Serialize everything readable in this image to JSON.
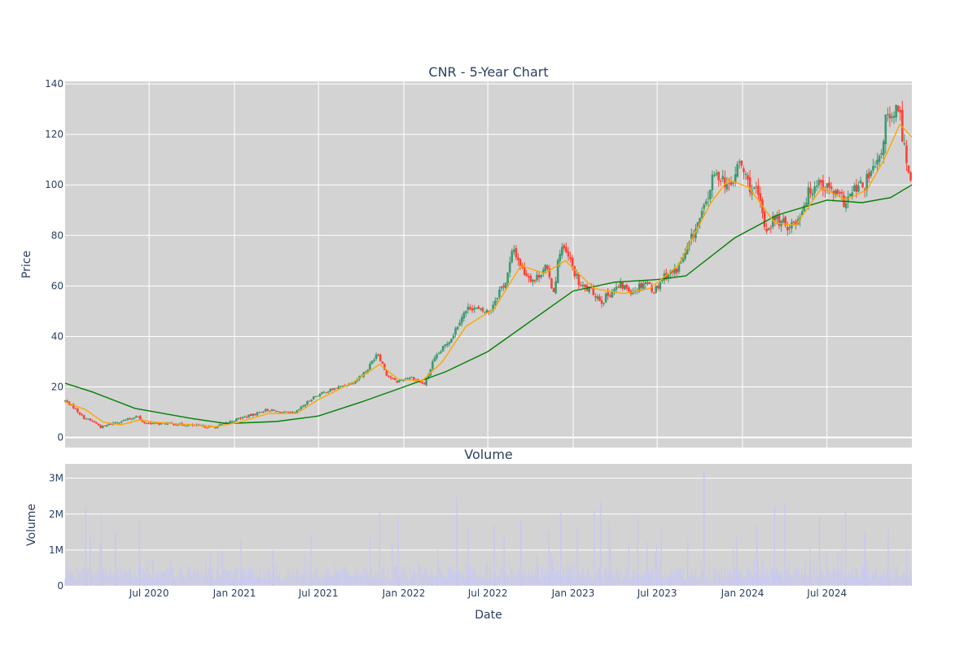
{
  "chart_data": [
    {
      "type": "candlestick",
      "title": "CNR - 5-Year Chart",
      "ylabel": "Price",
      "ylim": [
        -4,
        141
      ],
      "yticks": [
        0,
        20,
        40,
        60,
        80,
        100,
        120,
        140
      ],
      "x_range": [
        "2020-01-02",
        "2024-12-31"
      ],
      "grid": true,
      "up_color": "#3d9970",
      "down_color": "#ff4136",
      "ma_short_color": "#ffa500",
      "ma_long_color": "#008000",
      "price_path": [
        [
          "2020-01-02",
          14.5
        ],
        [
          "2020-01-20",
          12
        ],
        [
          "2020-02-10",
          8
        ],
        [
          "2020-03-05",
          6
        ],
        [
          "2020-03-20",
          4
        ],
        [
          "2020-04-10",
          5.5
        ],
        [
          "2020-05-01",
          6.5
        ],
        [
          "2020-05-25",
          7.5
        ],
        [
          "2020-06-05",
          9
        ],
        [
          "2020-06-15",
          6
        ],
        [
          "2020-07-10",
          5.5
        ],
        [
          "2020-08-10",
          5.5
        ],
        [
          "2020-09-15",
          5
        ],
        [
          "2020-10-20",
          4.5
        ],
        [
          "2020-11-20",
          4
        ],
        [
          "2020-12-10",
          5.5
        ],
        [
          "2021-01-10",
          7.5
        ],
        [
          "2021-02-10",
          9
        ],
        [
          "2021-03-10",
          11
        ],
        [
          "2021-04-10",
          10
        ],
        [
          "2021-05-10",
          9.5
        ],
        [
          "2021-06-01",
          13
        ],
        [
          "2021-06-20",
          16
        ],
        [
          "2021-07-15",
          18
        ],
        [
          "2021-08-15",
          20
        ],
        [
          "2021-09-15",
          22
        ],
        [
          "2021-10-15",
          27
        ],
        [
          "2021-11-05",
          34
        ],
        [
          "2021-11-25",
          25
        ],
        [
          "2021-12-15",
          22
        ],
        [
          "2022-01-15",
          24
        ],
        [
          "2022-02-15",
          21
        ],
        [
          "2022-03-05",
          30
        ],
        [
          "2022-03-25",
          35
        ],
        [
          "2022-04-15",
          40
        ],
        [
          "2022-05-05",
          48
        ],
        [
          "2022-05-25",
          52
        ],
        [
          "2022-06-15",
          50
        ],
        [
          "2022-07-05",
          50
        ],
        [
          "2022-07-25",
          58
        ],
        [
          "2022-08-10",
          62
        ],
        [
          "2022-08-25",
          75
        ],
        [
          "2022-09-15",
          66
        ],
        [
          "2022-10-10",
          62
        ],
        [
          "2022-11-01",
          68
        ],
        [
          "2022-11-20",
          58
        ],
        [
          "2022-12-05",
          76
        ],
        [
          "2022-12-25",
          70
        ],
        [
          "2023-01-15",
          60
        ],
        [
          "2023-02-10",
          58
        ],
        [
          "2023-03-05",
          54
        ],
        [
          "2023-03-25",
          58
        ],
        [
          "2023-04-15",
          60
        ],
        [
          "2023-05-10",
          58
        ],
        [
          "2023-06-05",
          62
        ],
        [
          "2023-06-25",
          58
        ],
        [
          "2023-07-15",
          64
        ],
        [
          "2023-08-10",
          66
        ],
        [
          "2023-08-30",
          72
        ],
        [
          "2023-09-20",
          82
        ],
        [
          "2023-10-10",
          90
        ],
        [
          "2023-10-30",
          103
        ],
        [
          "2023-11-15",
          104
        ],
        [
          "2023-12-05",
          98
        ],
        [
          "2023-12-25",
          109
        ],
        [
          "2024-01-15",
          100
        ],
        [
          "2024-02-05",
          95
        ],
        [
          "2024-02-20",
          82
        ],
        [
          "2024-03-10",
          87
        ],
        [
          "2024-04-01",
          84
        ],
        [
          "2024-04-25",
          85
        ],
        [
          "2024-05-20",
          96
        ],
        [
          "2024-06-10",
          102
        ],
        [
          "2024-07-01",
          99
        ],
        [
          "2024-07-20",
          96
        ],
        [
          "2024-08-10",
          93
        ],
        [
          "2024-08-30",
          98
        ],
        [
          "2024-09-20",
          100
        ],
        [
          "2024-10-10",
          106
        ],
        [
          "2024-10-25",
          110
        ],
        [
          "2024-11-05",
          127
        ],
        [
          "2024-11-20",
          124
        ],
        [
          "2024-12-01",
          132
        ],
        [
          "2024-12-15",
          115
        ],
        [
          "2024-12-25",
          104
        ],
        [
          "2024-12-31",
          103
        ]
      ],
      "ma_short_path": [
        [
          "2020-01-02",
          14
        ],
        [
          "2020-02-15",
          11
        ],
        [
          "2020-03-25",
          6
        ],
        [
          "2020-05-01",
          5
        ],
        [
          "2020-06-10",
          7
        ],
        [
          "2020-07-15",
          6
        ],
        [
          "2020-09-15",
          5.2
        ],
        [
          "2020-11-20",
          4.2
        ],
        [
          "2021-01-10",
          6
        ],
        [
          "2021-03-15",
          9.5
        ],
        [
          "2021-05-15",
          9.5
        ],
        [
          "2021-07-01",
          15
        ],
        [
          "2021-09-15",
          22
        ],
        [
          "2021-11-10",
          29
        ],
        [
          "2021-12-20",
          23
        ],
        [
          "2022-02-10",
          22.5
        ],
        [
          "2022-03-25",
          30
        ],
        [
          "2022-05-15",
          44
        ],
        [
          "2022-07-15",
          51
        ],
        [
          "2022-09-10",
          68
        ],
        [
          "2022-11-01",
          65
        ],
        [
          "2022-12-15",
          70
        ],
        [
          "2023-02-15",
          59
        ],
        [
          "2023-04-20",
          57
        ],
        [
          "2023-06-15",
          59
        ],
        [
          "2023-08-15",
          68
        ],
        [
          "2023-10-25",
          93
        ],
        [
          "2023-12-01",
          102
        ],
        [
          "2024-01-15",
          99
        ],
        [
          "2024-03-10",
          85
        ],
        [
          "2024-04-25",
          84
        ],
        [
          "2024-06-20",
          99
        ],
        [
          "2024-08-10",
          94
        ],
        [
          "2024-09-25",
          98
        ],
        [
          "2024-11-01",
          110
        ],
        [
          "2024-12-05",
          124
        ],
        [
          "2024-12-31",
          119
        ]
      ],
      "ma_long_path": [
        [
          "2020-01-02",
          21.5
        ],
        [
          "2020-03-01",
          18
        ],
        [
          "2020-06-01",
          11.5
        ],
        [
          "2020-10-01",
          7.5
        ],
        [
          "2020-12-15",
          5.5
        ],
        [
          "2021-04-01",
          6.3
        ],
        [
          "2021-07-01",
          8.5
        ],
        [
          "2021-10-01",
          14
        ],
        [
          "2022-01-01",
          20
        ],
        [
          "2022-04-01",
          26
        ],
        [
          "2022-07-01",
          34
        ],
        [
          "2022-10-01",
          46
        ],
        [
          "2023-01-01",
          58
        ],
        [
          "2023-04-01",
          61.5
        ],
        [
          "2023-07-01",
          62.5
        ],
        [
          "2023-09-01",
          64
        ],
        [
          "2023-12-15",
          79
        ],
        [
          "2024-03-15",
          88
        ],
        [
          "2024-07-01",
          94
        ],
        [
          "2024-09-15",
          93
        ],
        [
          "2024-11-15",
          95
        ],
        [
          "2024-12-31",
          100
        ]
      ]
    },
    {
      "type": "bar",
      "title": "Volume",
      "xlabel": "Date",
      "ylabel": "Volume",
      "ylim": [
        0,
        3400000
      ],
      "yticks": [
        0,
        1000000,
        2000000,
        3000000
      ],
      "ytick_labels": [
        "0",
        "1M",
        "2M",
        "3M"
      ],
      "bar_color": "#c8c8f0",
      "base_level": 450000,
      "spikes": [
        [
          "2020-02-15",
          2200000
        ],
        [
          "2020-02-25",
          1450000
        ],
        [
          "2020-03-20",
          1950000
        ],
        [
          "2020-04-20",
          1500000
        ],
        [
          "2020-06-10",
          1800000
        ],
        [
          "2020-11-10",
          900000
        ],
        [
          "2021-01-15",
          1250000
        ],
        [
          "2021-03-25",
          1000000
        ],
        [
          "2021-06-15",
          1400000
        ],
        [
          "2021-10-20",
          1450000
        ],
        [
          "2021-11-10",
          2100000
        ],
        [
          "2021-12-20",
          1950000
        ],
        [
          "2022-03-15",
          1000000
        ],
        [
          "2022-04-25",
          2450000
        ],
        [
          "2022-05-20",
          1600000
        ],
        [
          "2022-07-15",
          1700000
        ],
        [
          "2022-08-05",
          1450000
        ],
        [
          "2022-09-10",
          1800000
        ],
        [
          "2022-11-10",
          1500000
        ],
        [
          "2022-12-05",
          2050000
        ],
        [
          "2023-01-10",
          1600000
        ],
        [
          "2023-02-15",
          2150000
        ],
        [
          "2023-03-01",
          2350000
        ],
        [
          "2023-03-20",
          1800000
        ],
        [
          "2023-05-20",
          1850000
        ],
        [
          "2023-07-10",
          1600000
        ],
        [
          "2023-09-05",
          1300000
        ],
        [
          "2023-10-10",
          3200000
        ],
        [
          "2023-12-20",
          1350000
        ],
        [
          "2024-02-01",
          1700000
        ],
        [
          "2024-03-10",
          2200000
        ],
        [
          "2024-04-01",
          2300000
        ],
        [
          "2024-05-15",
          700000
        ],
        [
          "2024-06-15",
          1900000
        ],
        [
          "2024-07-25",
          900000
        ],
        [
          "2024-08-10",
          2050000
        ],
        [
          "2024-09-20",
          1500000
        ],
        [
          "2024-11-10",
          1550000
        ],
        [
          "2024-12-20",
          1000000
        ]
      ]
    }
  ],
  "x_axis": {
    "tick_labels": [
      "Jul 2020",
      "Jan 2021",
      "Jul 2021",
      "Jan 2022",
      "Jul 2022",
      "Jan 2023",
      "Jul 2023",
      "Jan 2024",
      "Jul 2024"
    ],
    "tick_dates": [
      "2020-07-01",
      "2021-01-01",
      "2021-07-01",
      "2022-01-01",
      "2022-07-01",
      "2023-01-01",
      "2023-07-01",
      "2024-01-01",
      "2024-07-01"
    ]
  },
  "colors": {
    "plot_bg": "#d3d3d3",
    "grid": "#ececec",
    "text": "#2a3f5f"
  }
}
